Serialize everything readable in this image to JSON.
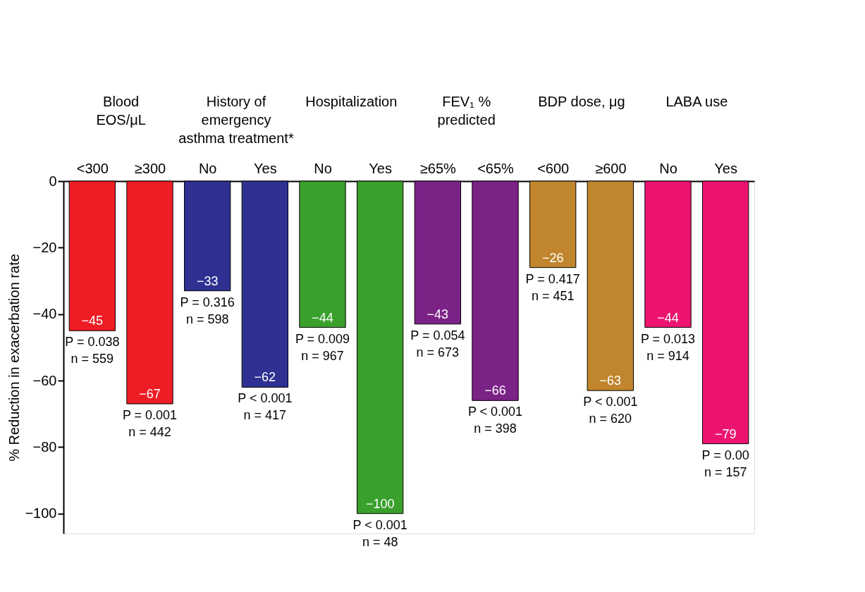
{
  "chart_data": {
    "type": "bar",
    "ylabel": "% Reduction in exacerbation rate",
    "categories": [
      "<300",
      "≥300",
      "No",
      "Yes",
      "No",
      "Yes",
      "≥65%",
      "<65%",
      "<600",
      "≥600",
      "No",
      "Yes"
    ],
    "values": [
      -45,
      -67,
      -33,
      -62,
      -44,
      -100,
      -43,
      -66,
      -26,
      -63,
      -44,
      -79
    ],
    "colors": [
      "#ee1c25",
      "#ee1c25",
      "#2e3192",
      "#2e3192",
      "#3aa02c",
      "#3aa02c",
      "#7b2287",
      "#7b2287",
      "#c0852d",
      "#c0852d",
      "#ed1470",
      "#ed1470"
    ],
    "value_labels": [
      "−45",
      "−67",
      "−33",
      "−62",
      "−44",
      "−100",
      "−43",
      "−66",
      "−26",
      "−63",
      "−44",
      "−79"
    ],
    "ylim": [
      -106,
      0
    ],
    "yticks": [
      0,
      {
        "value": -20,
        "label": "−20"
      },
      {
        "value": -40,
        "label": "−40"
      },
      {
        "value": -60,
        "label": "−60"
      },
      {
        "value": -80,
        "label": "−80"
      },
      {
        "value": -100,
        "label": "−100"
      }
    ],
    "grid": false,
    "annotations": [
      "Blood\nEOS/μL",
      "History of\nemergency\nasthma treatment*",
      "Hospitalization",
      "FEV₁ %\npredicted",
      "BDP dose, μg",
      "LABA use",
      "P = 0.038\nn = 559",
      "P = 0.001\nn = 442",
      "P = 0.316\nn = 598",
      "P < 0.001\nn = 417",
      "P = 0.009\nn = 967",
      "P < 0.001\nn = 48",
      "P = 0.054\nn = 673",
      "P < 0.001\nn = 398",
      "P = 0.417\nn = 451",
      "P < 0.001\nn = 620",
      "P = 0.013\nn = 914",
      "P = 0.00\nn = 157"
    ]
  }
}
